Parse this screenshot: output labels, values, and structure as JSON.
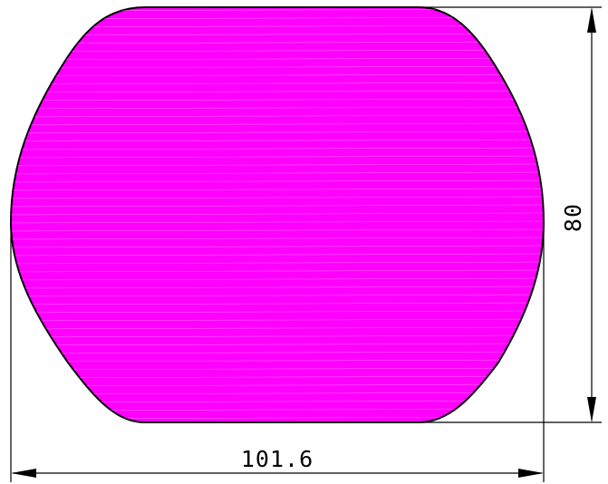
{
  "drawing": {
    "fill_color": "#ff00ff",
    "outline_color": "#000000",
    "background_color": "#ffffff"
  },
  "dimensions": {
    "width": {
      "value": 101.6,
      "label": "101.6"
    },
    "height": {
      "value": 80,
      "label": "80"
    }
  }
}
